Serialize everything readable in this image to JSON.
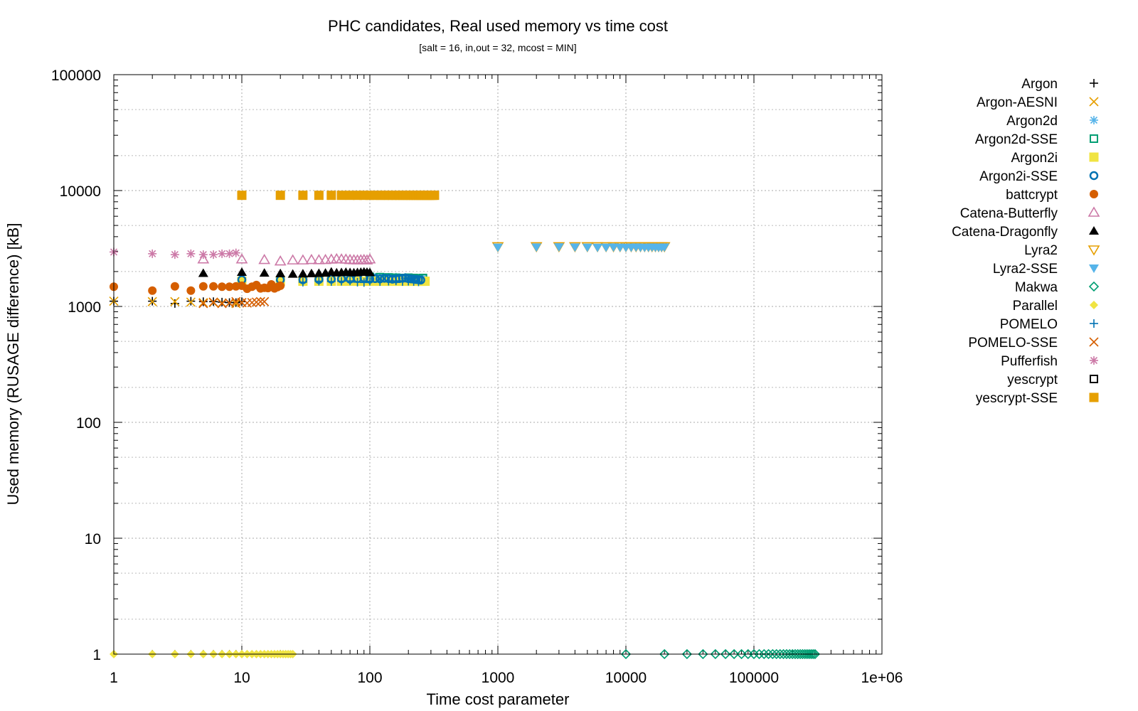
{
  "chart_data": {
    "type": "scatter",
    "title": "PHC candidates, Real used memory vs time cost",
    "subtitle": "[salt = 16, in,out = 32, mcost = MIN]",
    "xlabel": "Time cost parameter",
    "ylabel": "Used memory (RUSAGE difference) [kB]",
    "xscale": "log",
    "yscale": "log",
    "xlim": [
      1,
      1000000
    ],
    "ylim": [
      1,
      100000
    ],
    "xticks": [
      1,
      10,
      100,
      1000,
      10000,
      100000,
      1000000
    ],
    "xtick_labels": [
      "1",
      "10",
      "100",
      "1000",
      "10000",
      "100000",
      "1e+06"
    ],
    "yticks": [
      1,
      10,
      100,
      1000,
      10000,
      100000
    ],
    "ytick_labels": [
      "1",
      "10",
      "100",
      "1000",
      "10000",
      "100000"
    ],
    "grid": true,
    "legend_position": "right",
    "series": [
      {
        "name": "Argon",
        "color": "#000000",
        "marker": "plus",
        "x": [
          1,
          2,
          3,
          4,
          5,
          6,
          7,
          8,
          9,
          10
        ],
        "y": [
          1110,
          1110,
          1060,
          1110,
          1100,
          1100,
          1090,
          1080,
          1080,
          1100
        ]
      },
      {
        "name": "Argon-AESNI",
        "color": "#e69f00",
        "marker": "cross",
        "x": [
          1,
          2,
          3,
          4,
          5,
          6,
          7,
          8,
          9,
          10
        ],
        "y": [
          1110,
          1100,
          1100,
          1090,
          1080,
          1080,
          1070,
          1070,
          1060,
          1080
        ]
      },
      {
        "name": "Argon2d",
        "color": "#56b4e9",
        "marker": "star",
        "x": [
          100,
          110,
          120,
          130,
          140,
          150,
          160,
          170,
          180,
          190,
          200,
          210,
          220,
          230,
          240,
          250,
          260
        ],
        "y": [
          1800,
          1780,
          1790,
          1770,
          1780,
          1760,
          1790,
          1770,
          1750,
          1780,
          1760,
          1770,
          1750,
          1760,
          1740,
          1750,
          1760
        ]
      },
      {
        "name": "Argon2d-SSE",
        "color": "#009e73",
        "marker": "open-square",
        "x": [
          100,
          120,
          140,
          160,
          180,
          200,
          220,
          240,
          260
        ],
        "y": [
          1800,
          1790,
          1780,
          1770,
          1760,
          1770,
          1760,
          1750,
          1760
        ]
      },
      {
        "name": "Argon2i",
        "color": "#f0e442",
        "marker": "filled-square",
        "x": [
          10,
          20,
          30,
          40,
          50,
          60,
          70,
          80,
          90,
          100,
          110,
          120,
          130,
          140,
          150,
          160,
          170,
          180,
          190,
          200,
          210,
          220,
          230,
          240,
          250,
          260,
          270
        ],
        "y": [
          1650,
          1650,
          1650,
          1650,
          1650,
          1650,
          1650,
          1650,
          1650,
          1650,
          1650,
          1650,
          1650,
          1650,
          1650,
          1650,
          1650,
          1650,
          1650,
          1650,
          1650,
          1650,
          1650,
          1650,
          1650,
          1650,
          1650
        ]
      },
      {
        "name": "Argon2i-SSE",
        "color": "#0072b2",
        "marker": "open-circle",
        "x": [
          10,
          20,
          30,
          40,
          50,
          60,
          70,
          80,
          90,
          100,
          110,
          120,
          130,
          140,
          150,
          160,
          170,
          180,
          190,
          200,
          210,
          220,
          230,
          240,
          250
        ],
        "y": [
          1700,
          1700,
          1700,
          1710,
          1720,
          1730,
          1720,
          1740,
          1760,
          1720,
          1740,
          1730,
          1750,
          1740,
          1720,
          1730,
          1740,
          1750,
          1760,
          1740,
          1730,
          1720,
          1710,
          1700,
          1690
        ]
      },
      {
        "name": "battcrypt",
        "color": "#d55e00",
        "marker": "filled-circle",
        "x": [
          1,
          2,
          3,
          4,
          5,
          6,
          7,
          8,
          9,
          10,
          11,
          12,
          13,
          14,
          15,
          16,
          17,
          18,
          19,
          20
        ],
        "y": [
          1480,
          1370,
          1490,
          1370,
          1490,
          1490,
          1480,
          1480,
          1490,
          1510,
          1420,
          1480,
          1530,
          1430,
          1450,
          1440,
          1550,
          1430,
          1470,
          1510
        ]
      },
      {
        "name": "Catena-Butterfly",
        "color": "#cc79a7",
        "marker": "open-triangle",
        "x": [
          5,
          10,
          15,
          20,
          25,
          30,
          35,
          40,
          45,
          50,
          55,
          60,
          65,
          70,
          75,
          80,
          85,
          90,
          95,
          100
        ],
        "y": [
          2550,
          2550,
          2520,
          2450,
          2500,
          2500,
          2520,
          2510,
          2520,
          2540,
          2560,
          2550,
          2540,
          2520,
          2510,
          2500,
          2510,
          2520,
          2500,
          2550
        ]
      },
      {
        "name": "Catena-Dragonfly",
        "color": "#000000",
        "marker": "filled-triangle",
        "x": [
          5,
          10,
          15,
          20,
          25,
          30,
          35,
          40,
          45,
          50,
          55,
          60,
          65,
          70,
          75,
          80,
          85,
          90,
          95,
          100
        ],
        "y": [
          1930,
          1970,
          1940,
          1920,
          1900,
          1910,
          1920,
          1930,
          1940,
          1980,
          1950,
          1960,
          1970,
          1960,
          1950,
          1960,
          1970,
          1980,
          1970,
          1960
        ]
      },
      {
        "name": "Lyra2",
        "color": "#e69f00",
        "marker": "open-triangle-down",
        "x": [
          1000,
          2000,
          3000,
          4000,
          5000,
          6000,
          7000,
          8000,
          9000,
          10000,
          11000,
          12000,
          13000,
          14000,
          15000,
          16000,
          17000,
          18000,
          19000,
          20000
        ],
        "y": [
          3300,
          3300,
          3300,
          3300,
          3300,
          3300,
          3300,
          3300,
          3300,
          3300,
          3300,
          3300,
          3300,
          3300,
          3300,
          3300,
          3300,
          3300,
          3300,
          3300
        ]
      },
      {
        "name": "Lyra2-SSE",
        "color": "#56b4e9",
        "marker": "filled-triangle-down",
        "x": [
          1000,
          2000,
          3000,
          4000,
          5000,
          6000,
          7000,
          8000,
          9000,
          10000,
          11000,
          12000,
          13000,
          14000,
          15000,
          16000,
          17000,
          18000,
          19000,
          20000
        ],
        "y": [
          3250,
          3260,
          3270,
          3260,
          3250,
          3240,
          3250,
          3260,
          3250,
          3240,
          3250,
          3260,
          3250,
          3240,
          3250,
          3260,
          3250,
          3240,
          3250,
          3260
        ]
      },
      {
        "name": "Makwa",
        "color": "#009e73",
        "marker": "open-diamond",
        "x": [
          10000,
          20000,
          30000,
          40000,
          50000,
          60000,
          70000,
          80000,
          90000,
          100000,
          110000,
          120000,
          130000,
          140000,
          150000,
          160000,
          170000,
          180000,
          190000,
          200000,
          210000,
          220000,
          230000,
          240000,
          250000,
          260000,
          270000,
          280000,
          290000,
          300000
        ],
        "y": [
          1,
          1,
          1,
          1,
          1,
          1,
          1,
          1,
          1,
          1,
          1,
          1,
          1,
          1,
          1,
          1,
          1,
          1,
          1,
          1,
          1,
          1,
          1,
          1,
          1,
          1,
          1,
          1,
          1,
          1
        ]
      },
      {
        "name": "Parallel",
        "color": "#f0e442",
        "marker": "filled-diamond",
        "x": [
          1,
          2,
          3,
          4,
          5,
          6,
          7,
          8,
          9,
          10,
          11,
          12,
          13,
          14,
          15,
          16,
          17,
          18,
          19,
          20,
          21,
          22,
          23,
          24,
          25
        ],
        "y": [
          1,
          1,
          1,
          1,
          1,
          1,
          1,
          1,
          1,
          1,
          1,
          1,
          1,
          1,
          1,
          1,
          1,
          1,
          1,
          1,
          1,
          1,
          1,
          1,
          1
        ]
      },
      {
        "name": "POMELO",
        "color": "#0072b2",
        "marker": "plus",
        "x": [
          30,
          40,
          50,
          60,
          70,
          80,
          90,
          100,
          120,
          140,
          160,
          180,
          200,
          220,
          240
        ],
        "y": [
          1620,
          1650,
          1640,
          1650,
          1660,
          1620,
          1610,
          1650,
          1640,
          1650,
          1660,
          1640,
          1650,
          1640,
          1630
        ]
      },
      {
        "name": "POMELO-SSE",
        "color": "#d55e00",
        "marker": "cross",
        "x": [
          5,
          6,
          7,
          8,
          9,
          10,
          11,
          12,
          13,
          14,
          15
        ],
        "y": [
          1060,
          1090,
          1060,
          1070,
          1100,
          1080,
          1070,
          1080,
          1090,
          1100,
          1100
        ]
      },
      {
        "name": "Pufferfish",
        "color": "#cc79a7",
        "marker": "star",
        "x": [
          1,
          2,
          3,
          4,
          5,
          6,
          7,
          8,
          9
        ],
        "y": [
          2950,
          2850,
          2800,
          2850,
          2800,
          2800,
          2850,
          2850,
          2900
        ]
      },
      {
        "name": "yescrypt",
        "color": "#000000",
        "marker": "open-square",
        "x": [],
        "y": []
      },
      {
        "name": "yescrypt-SSE",
        "color": "#e69f00",
        "marker": "filled-square",
        "x": [
          10,
          20,
          30,
          40,
          50,
          60,
          70,
          80,
          90,
          100,
          110,
          120,
          130,
          140,
          150,
          160,
          170,
          180,
          190,
          200,
          210,
          220,
          230,
          240,
          250,
          260,
          270,
          280,
          290,
          300,
          310,
          320
        ],
        "y": [
          9100,
          9100,
          9100,
          9100,
          9100,
          9100,
          9100,
          9100,
          9100,
          9100,
          9100,
          9100,
          9100,
          9100,
          9100,
          9100,
          9100,
          9100,
          9100,
          9100,
          9100,
          9100,
          9100,
          9100,
          9100,
          9100,
          9100,
          9100,
          9100,
          9100,
          9100,
          9100
        ]
      }
    ]
  }
}
